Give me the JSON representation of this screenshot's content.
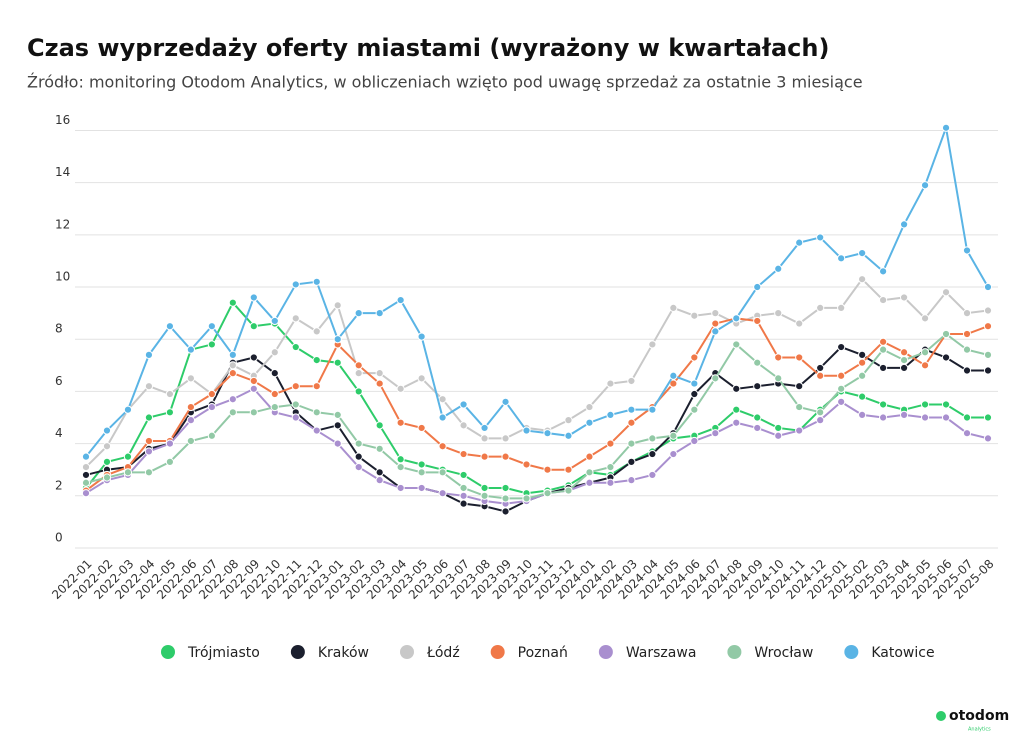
{
  "chart_data": {
    "type": "line",
    "title": "Czas wyprzedaży oferty miastami (wyrażony w kwartałach)",
    "subtitle": "Źródło: monitoring Otodom Analytics, w obliczeniach wzięto pod uwagę sprzedaż za ostatnie 3 miesiące",
    "categories": [
      "2022-01",
      "2022-02",
      "2022-03",
      "2022-04",
      "2022-05",
      "2022-06",
      "2022-07",
      "2022-08",
      "2022-09",
      "2022-10",
      "2022-11",
      "2022-12",
      "2023-01",
      "2023-02",
      "2023-03",
      "2023-04",
      "2023-05",
      "2023-06",
      "2023-07",
      "2023-08",
      "2023-09",
      "2023-10",
      "2023-11",
      "2023-12",
      "2024-01",
      "2024-02",
      "2024-03",
      "2024-04",
      "2024-05",
      "2024-06",
      "2024-07",
      "2024-08",
      "2024-09",
      "2024-10",
      "2024-11",
      "2024-12",
      "2025-01",
      "2025-02",
      "2025-03",
      "2025-04",
      "2025-05",
      "2025-06",
      "2025-07",
      "2025-08"
    ],
    "series": [
      {
        "name": "Trójmiasto",
        "color": "#2ecc6a",
        "values": [
          2.3,
          3.3,
          3.5,
          5.0,
          5.2,
          7.6,
          7.8,
          9.4,
          8.5,
          8.6,
          7.7,
          7.2,
          7.1,
          6.0,
          4.7,
          3.4,
          3.2,
          3.0,
          2.8,
          2.3,
          2.3,
          2.1,
          2.2,
          2.4,
          2.9,
          2.8,
          3.3,
          3.7,
          4.2,
          4.3,
          4.6,
          5.3,
          5.0,
          4.6,
          4.5,
          5.3,
          6.0,
          5.8,
          5.5,
          5.3,
          5.5,
          5.5,
          5.0,
          5.0
        ]
      },
      {
        "name": "Kraków",
        "color": "#1b1f2e",
        "values": [
          2.8,
          3.0,
          3.1,
          3.8,
          4.0,
          5.2,
          5.5,
          7.1,
          7.3,
          6.7,
          5.2,
          4.5,
          4.7,
          3.5,
          2.9,
          2.3,
          2.3,
          2.1,
          1.7,
          1.6,
          1.4,
          1.8,
          2.1,
          2.3,
          2.5,
          2.7,
          3.3,
          3.6,
          4.4,
          5.9,
          6.7,
          6.1,
          6.2,
          6.3,
          6.2,
          6.9,
          7.7,
          7.4,
          6.9,
          6.9,
          7.6,
          7.3,
          6.8,
          6.8
        ]
      },
      {
        "name": "Łódź",
        "color": "#c8c8c8",
        "values": [
          3.1,
          3.9,
          5.3,
          6.2,
          5.9,
          6.5,
          5.9,
          7.0,
          6.6,
          7.5,
          8.8,
          8.3,
          9.3,
          6.7,
          6.7,
          6.1,
          6.5,
          5.7,
          4.7,
          4.2,
          4.2,
          4.6,
          4.5,
          4.9,
          5.4,
          6.3,
          6.4,
          7.8,
          9.2,
          8.9,
          9.0,
          8.6,
          8.9,
          9.0,
          8.6,
          9.2,
          9.2,
          10.3,
          9.5,
          9.6,
          8.8,
          9.8,
          9.0,
          9.1
        ]
      },
      {
        "name": "Poznań",
        "color": "#f07848",
        "values": [
          2.2,
          2.8,
          3.1,
          4.1,
          4.1,
          5.4,
          5.9,
          6.7,
          6.4,
          5.9,
          6.2,
          6.2,
          7.8,
          7.0,
          6.3,
          4.8,
          4.6,
          3.9,
          3.6,
          3.5,
          3.5,
          3.2,
          3.0,
          3.0,
          3.5,
          4.0,
          4.8,
          5.4,
          6.3,
          7.3,
          8.6,
          8.8,
          8.7,
          7.3,
          7.3,
          6.6,
          6.6,
          7.1,
          7.9,
          7.5,
          7.0,
          8.2,
          8.2,
          8.5
        ]
      },
      {
        "name": "Warszawa",
        "color": "#a98fcf",
        "values": [
          2.1,
          2.6,
          2.8,
          3.7,
          4.0,
          4.9,
          5.4,
          5.7,
          6.1,
          5.2,
          5.0,
          4.5,
          4.0,
          3.1,
          2.6,
          2.3,
          2.3,
          2.1,
          2.0,
          1.8,
          1.7,
          1.8,
          2.1,
          2.2,
          2.5,
          2.5,
          2.6,
          2.8,
          3.6,
          4.1,
          4.4,
          4.8,
          4.6,
          4.3,
          4.5,
          4.9,
          5.6,
          5.1,
          5.0,
          5.1,
          5.0,
          5.0,
          4.4,
          4.2
        ]
      },
      {
        "name": "Wrocław",
        "color": "#92c9a6",
        "values": [
          2.5,
          2.7,
          2.9,
          2.9,
          3.3,
          4.1,
          4.3,
          5.2,
          5.2,
          5.4,
          5.5,
          5.2,
          5.1,
          4.0,
          3.8,
          3.1,
          2.9,
          2.9,
          2.3,
          2.0,
          1.9,
          1.9,
          2.1,
          2.2,
          2.9,
          3.1,
          4.0,
          4.2,
          4.3,
          5.3,
          6.5,
          7.8,
          7.1,
          6.5,
          5.4,
          5.2,
          6.1,
          6.6,
          7.6,
          7.2,
          7.5,
          8.2,
          7.6,
          7.4
        ]
      },
      {
        "name": "Katowice",
        "color": "#5ab4e5",
        "values": [
          3.5,
          4.5,
          5.3,
          7.4,
          8.5,
          7.6,
          8.5,
          7.4,
          9.6,
          8.7,
          10.1,
          10.2,
          8.0,
          9.0,
          9.0,
          9.5,
          8.1,
          5.0,
          5.5,
          4.6,
          5.6,
          4.5,
          4.4,
          4.3,
          4.8,
          5.1,
          5.3,
          5.3,
          6.6,
          6.3,
          8.3,
          8.8,
          10.0,
          10.7,
          11.7,
          11.9,
          11.1,
          11.3,
          10.6,
          12.4,
          13.9,
          16.1,
          11.4,
          10.0
        ]
      }
    ],
    "ylim": [
      0,
      16.4
    ],
    "yticks": [
      0,
      2,
      4,
      6,
      8,
      10,
      12,
      14,
      16
    ],
    "grid": true,
    "legend": "bottom"
  },
  "brand": {
    "name": "otodom",
    "tagline": "Analytics"
  }
}
